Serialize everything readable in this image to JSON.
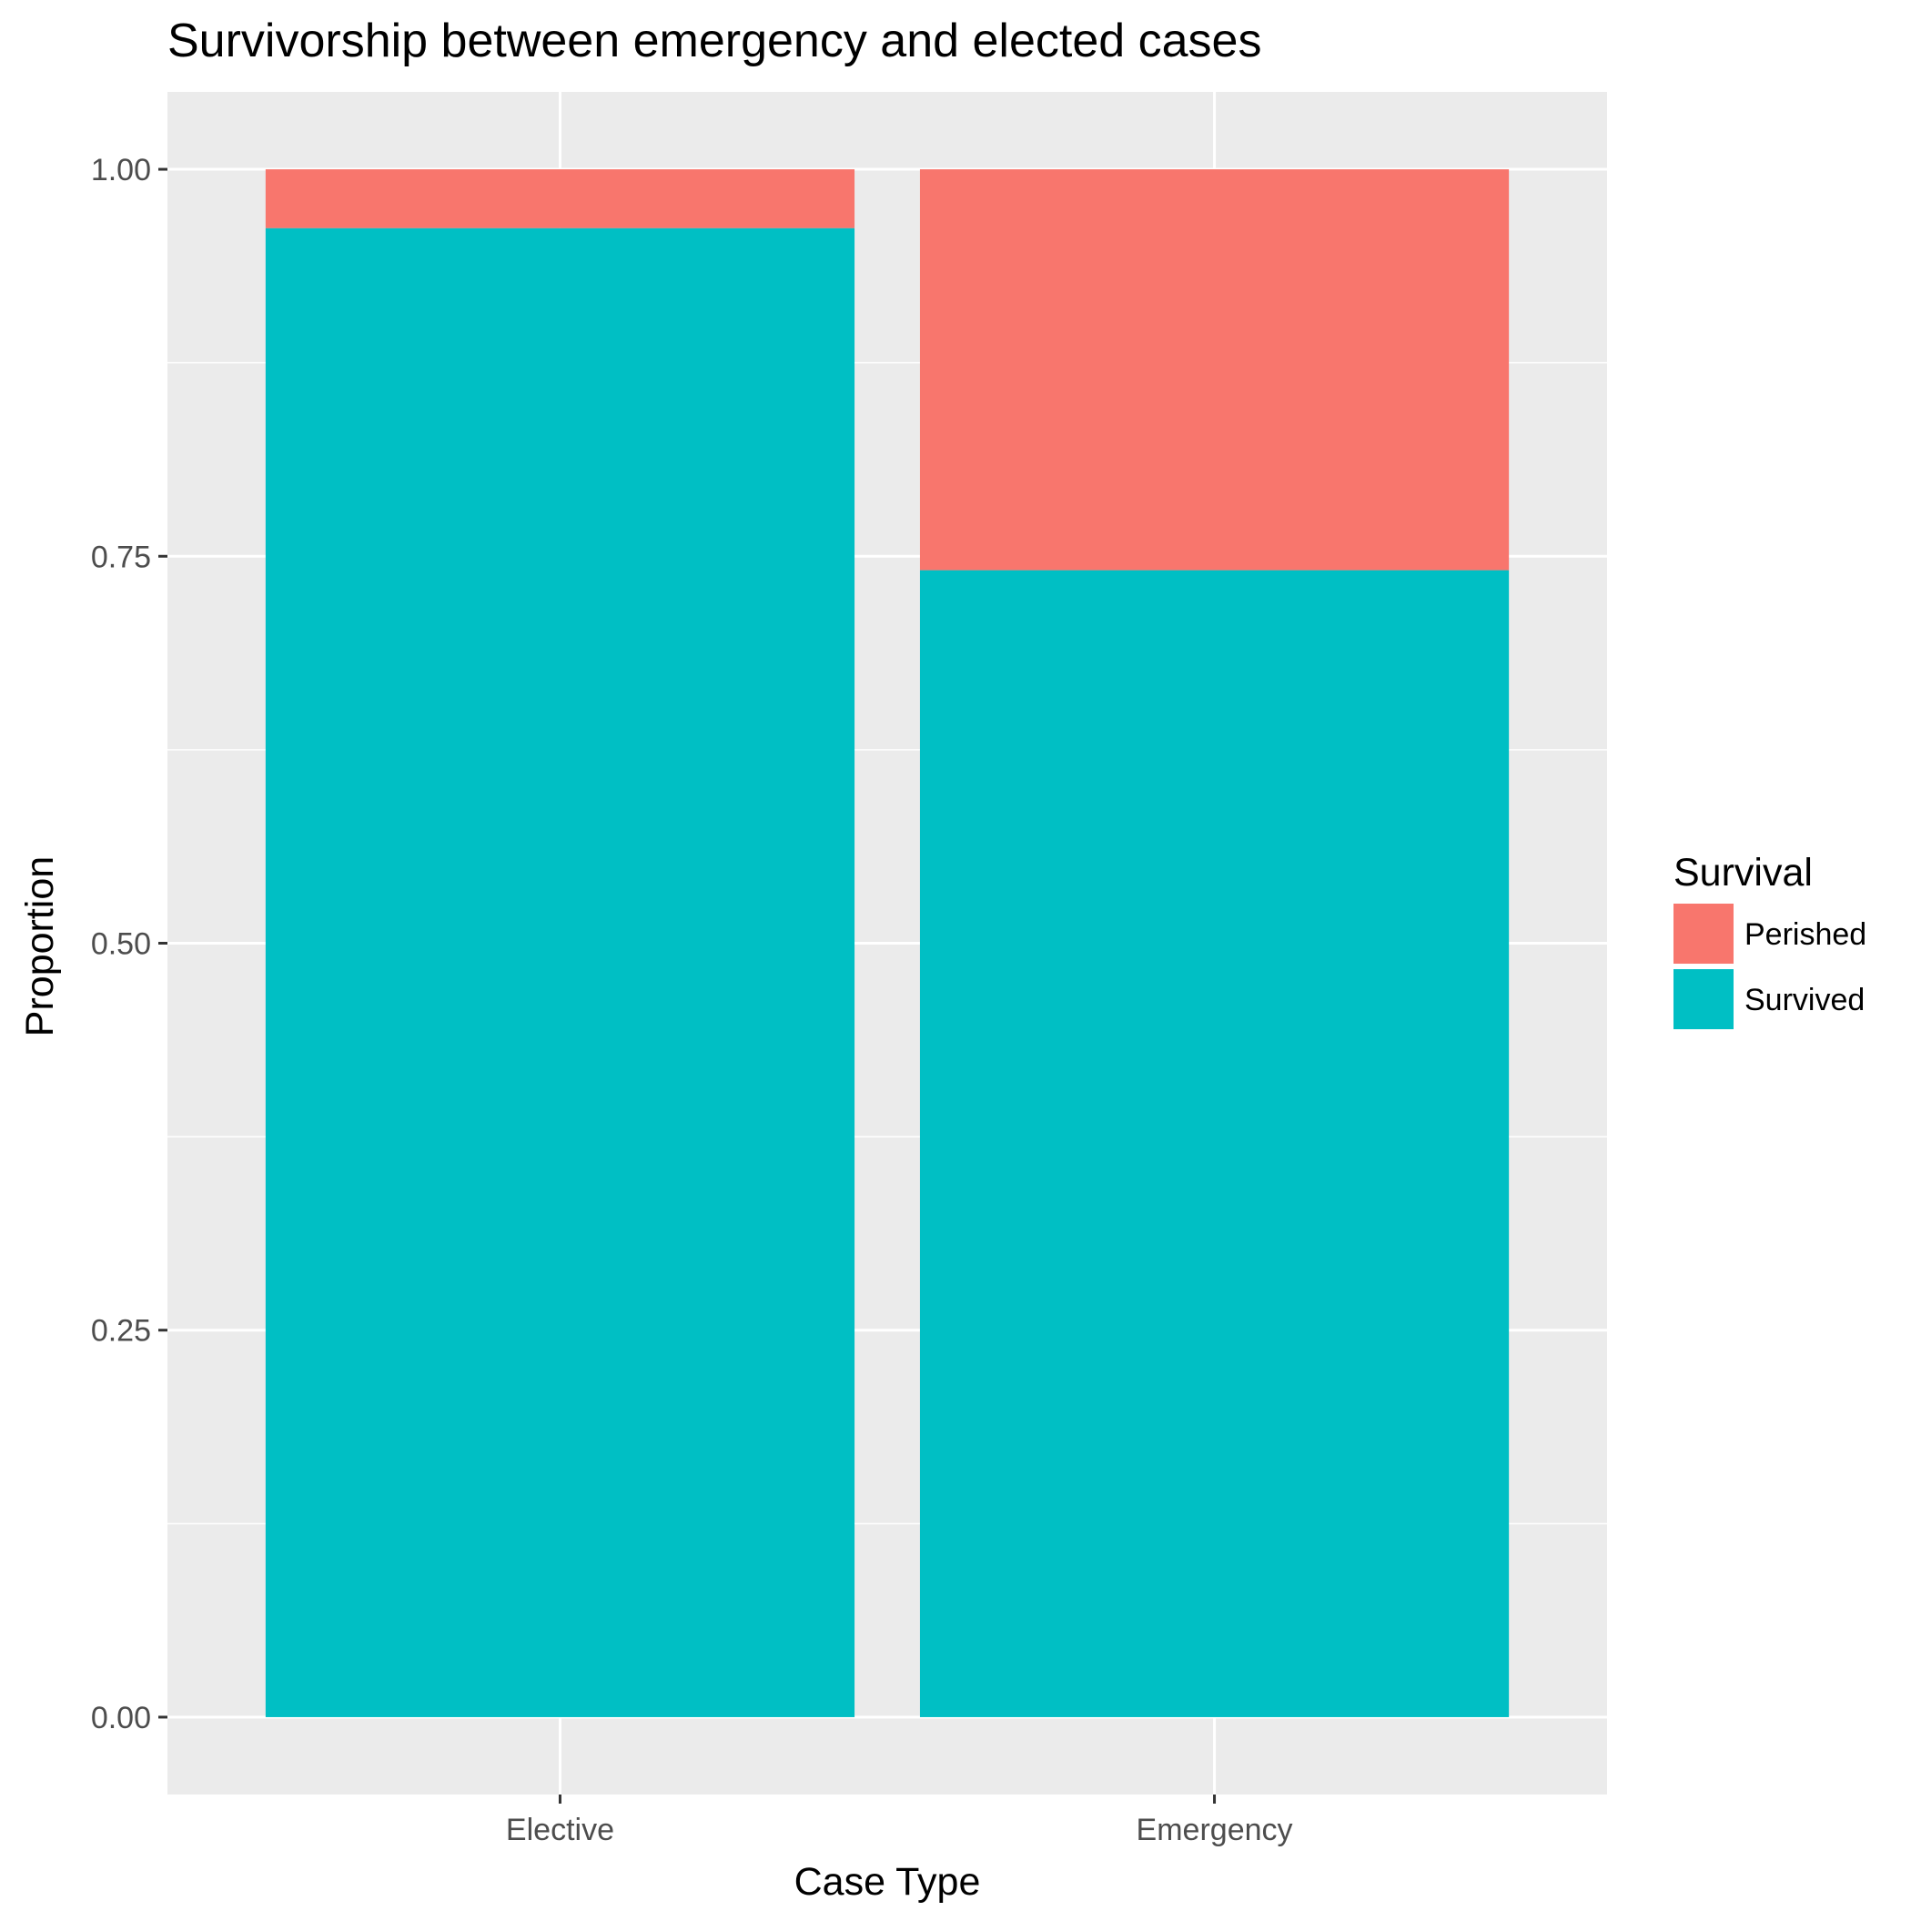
{
  "chart_data": {
    "type": "bar",
    "stacked": true,
    "title": "Survivorship between emergency and elected cases",
    "xlabel": "Case Type",
    "ylabel": "Proportion",
    "categories": [
      "Elective",
      "Emergency"
    ],
    "series": [
      {
        "name": "Survived",
        "color": "#00BFC4",
        "values": [
          0.962,
          0.741
        ]
      },
      {
        "name": "Perished",
        "color": "#F8766D",
        "values": [
          0.038,
          0.259
        ]
      }
    ],
    "ylim": [
      -0.05,
      1.05
    ],
    "yticks": [
      0,
      0.25,
      0.5,
      0.75,
      1
    ],
    "ytick_labels": [
      "0.00",
      "0.25",
      "0.50",
      "0.75",
      "1.00"
    ],
    "grid": true,
    "legend": {
      "title": "Survival",
      "position": "right",
      "entries": [
        {
          "label": "Perished",
          "color": "#F8766D"
        },
        {
          "label": "Survived",
          "color": "#00BFC4"
        }
      ]
    },
    "panel_background": "#EBEBEB",
    "grid_color": "#FFFFFF"
  }
}
